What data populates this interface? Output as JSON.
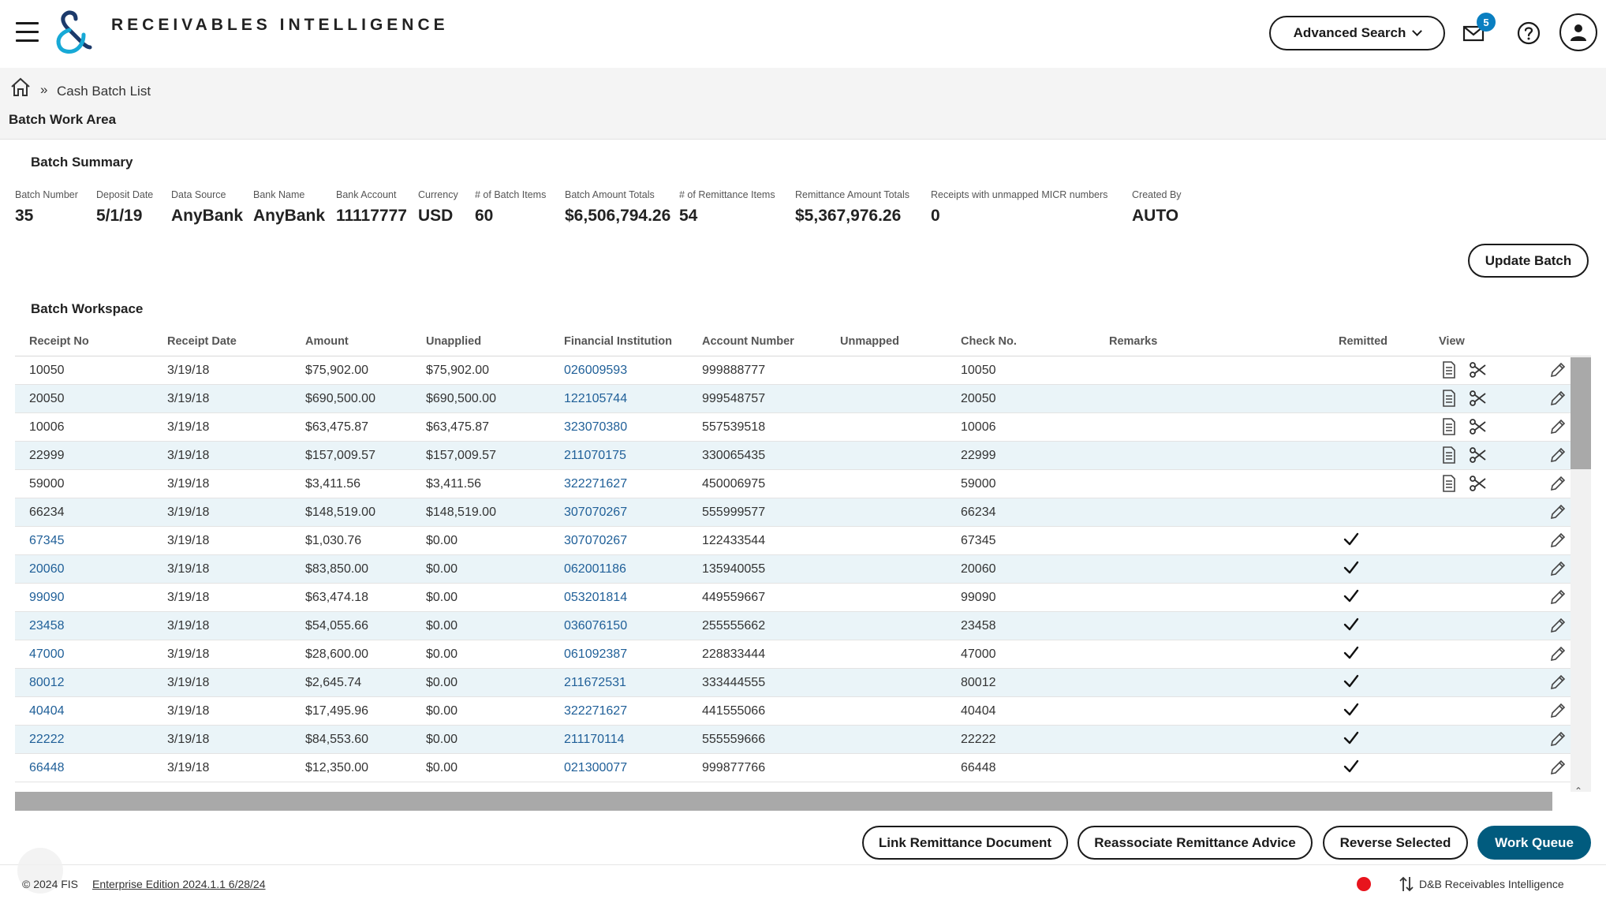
{
  "header": {
    "app_title": "RECEIVABLES INTELLIGENCE",
    "advanced_search_label": "Advanced Search",
    "mail_badge_count": "5"
  },
  "breadcrumb": {
    "separator": "»",
    "current": "Cash Batch List"
  },
  "page_title": "Batch Work Area",
  "batch_summary": {
    "title": "Batch Summary",
    "fields": [
      {
        "label": "Batch Number",
        "value": "35"
      },
      {
        "label": "Deposit Date",
        "value": "5/1/19"
      },
      {
        "label": "Data Source",
        "value": "AnyBank"
      },
      {
        "label": "Bank Name",
        "value": "AnyBank"
      },
      {
        "label": "Bank Account",
        "value": "11117777"
      },
      {
        "label": "Currency",
        "value": "USD"
      },
      {
        "label": "# of Batch Items",
        "value": "60"
      },
      {
        "label": "Batch Amount Totals",
        "value": "$6,506,794.26"
      },
      {
        "label": "# of Remittance Items",
        "value": "54"
      },
      {
        "label": "Remittance Amount Totals",
        "value": "$5,367,976.26"
      },
      {
        "label": "Receipts with unmapped MICR numbers",
        "value": "0"
      },
      {
        "label": "Created By",
        "value": "AUTO"
      }
    ],
    "update_button": "Update Batch"
  },
  "workspace": {
    "title": "Batch Workspace",
    "columns": [
      "Receipt No",
      "Receipt Date",
      "Amount",
      "Unapplied",
      "Financial Institution",
      "Account Number",
      "Unmapped",
      "Check No.",
      "Remarks",
      "Remitted",
      "View"
    ],
    "rows": [
      {
        "receipt_no": "10050",
        "receipt_date": "3/19/18",
        "amount": "$75,902.00",
        "unapplied": "$75,902.00",
        "institution": "026009593",
        "account": "999888777",
        "unmapped": "",
        "check_no": "10050",
        "remarks": "",
        "remitted": false,
        "view": true
      },
      {
        "receipt_no": "20050",
        "receipt_date": "3/19/18",
        "amount": "$690,500.00",
        "unapplied": "$690,500.00",
        "institution": "122105744",
        "account": "999548757",
        "unmapped": "",
        "check_no": "20050",
        "remarks": "",
        "remitted": false,
        "view": true
      },
      {
        "receipt_no": "10006",
        "receipt_date": "3/19/18",
        "amount": "$63,475.87",
        "unapplied": "$63,475.87",
        "institution": "323070380",
        "account": "557539518",
        "unmapped": "",
        "check_no": "10006",
        "remarks": "",
        "remitted": false,
        "view": true
      },
      {
        "receipt_no": "22999",
        "receipt_date": "3/19/18",
        "amount": "$157,009.57",
        "unapplied": "$157,009.57",
        "institution": "211070175",
        "account": "330065435",
        "unmapped": "",
        "check_no": "22999",
        "remarks": "",
        "remitted": false,
        "view": true
      },
      {
        "receipt_no": "59000",
        "receipt_date": "3/19/18",
        "amount": "$3,411.56",
        "unapplied": "$3,411.56",
        "institution": "322271627",
        "account": "450006975",
        "unmapped": "",
        "check_no": "59000",
        "remarks": "",
        "remitted": false,
        "view": true
      },
      {
        "receipt_no": "66234",
        "receipt_date": "3/19/18",
        "amount": "$148,519.00",
        "unapplied": "$148,519.00",
        "institution": "307070267",
        "account": "555999577",
        "unmapped": "",
        "check_no": "66234",
        "remarks": "",
        "remitted": false,
        "view": false
      },
      {
        "receipt_no": "67345",
        "receipt_date": "3/19/18",
        "amount": "$1,030.76",
        "unapplied": "$0.00",
        "institution": "307070267",
        "account": "122433544",
        "unmapped": "",
        "check_no": "67345",
        "remarks": "",
        "remitted": true,
        "view": false
      },
      {
        "receipt_no": "20060",
        "receipt_date": "3/19/18",
        "amount": "$83,850.00",
        "unapplied": "$0.00",
        "institution": "062001186",
        "account": "135940055",
        "unmapped": "",
        "check_no": "20060",
        "remarks": "",
        "remitted": true,
        "view": false
      },
      {
        "receipt_no": "99090",
        "receipt_date": "3/19/18",
        "amount": "$63,474.18",
        "unapplied": "$0.00",
        "institution": "053201814",
        "account": "449559667",
        "unmapped": "",
        "check_no": "99090",
        "remarks": "",
        "remitted": true,
        "view": false
      },
      {
        "receipt_no": "23458",
        "receipt_date": "3/19/18",
        "amount": "$54,055.66",
        "unapplied": "$0.00",
        "institution": "036076150",
        "account": "255555662",
        "unmapped": "",
        "check_no": "23458",
        "remarks": "",
        "remitted": true,
        "view": false
      },
      {
        "receipt_no": "47000",
        "receipt_date": "3/19/18",
        "amount": "$28,600.00",
        "unapplied": "$0.00",
        "institution": "061092387",
        "account": "228833444",
        "unmapped": "",
        "check_no": "47000",
        "remarks": "",
        "remitted": true,
        "view": false
      },
      {
        "receipt_no": "80012",
        "receipt_date": "3/19/18",
        "amount": "$2,645.74",
        "unapplied": "$0.00",
        "institution": "211672531",
        "account": "333444555",
        "unmapped": "",
        "check_no": "80012",
        "remarks": "",
        "remitted": true,
        "view": false
      },
      {
        "receipt_no": "40404",
        "receipt_date": "3/19/18",
        "amount": "$17,495.96",
        "unapplied": "$0.00",
        "institution": "322271627",
        "account": "441555066",
        "unmapped": "",
        "check_no": "40404",
        "remarks": "",
        "remitted": true,
        "view": false
      },
      {
        "receipt_no": "22222",
        "receipt_date": "3/19/18",
        "amount": "$84,553.60",
        "unapplied": "$0.00",
        "institution": "211170114",
        "account": "555559666",
        "unmapped": "",
        "check_no": "22222",
        "remarks": "",
        "remitted": true,
        "view": false
      },
      {
        "receipt_no": "66448",
        "receipt_date": "3/19/18",
        "amount": "$12,350.00",
        "unapplied": "$0.00",
        "institution": "021300077",
        "account": "999877766",
        "unmapped": "",
        "check_no": "66448",
        "remarks": "",
        "remitted": true,
        "view": false
      }
    ]
  },
  "actions": {
    "link_remittance": "Link Remittance Document",
    "reassociate": "Reassociate Remittance Advice",
    "reverse": "Reverse Selected",
    "work_queue": "Work Queue"
  },
  "footer": {
    "copyright": "© 2024 FIS",
    "edition": "Enterprise Edition 2024.1.1 6/28/24",
    "brand": "D&B Receivables Intelligence"
  },
  "icons": [
    "menu-icon",
    "logo-icon",
    "chevron-down-icon",
    "mail-icon",
    "help-icon",
    "user-icon",
    "home-icon",
    "document-icon",
    "scissors-icon",
    "pencil-icon",
    "check-icon",
    "sort-icon"
  ],
  "colors": {
    "link": "#1f5f98",
    "row_alt": "#eaf4f8",
    "primary_button": "#015b7e",
    "badge": "#0a7fc1",
    "status_dot": "#e8141d"
  }
}
